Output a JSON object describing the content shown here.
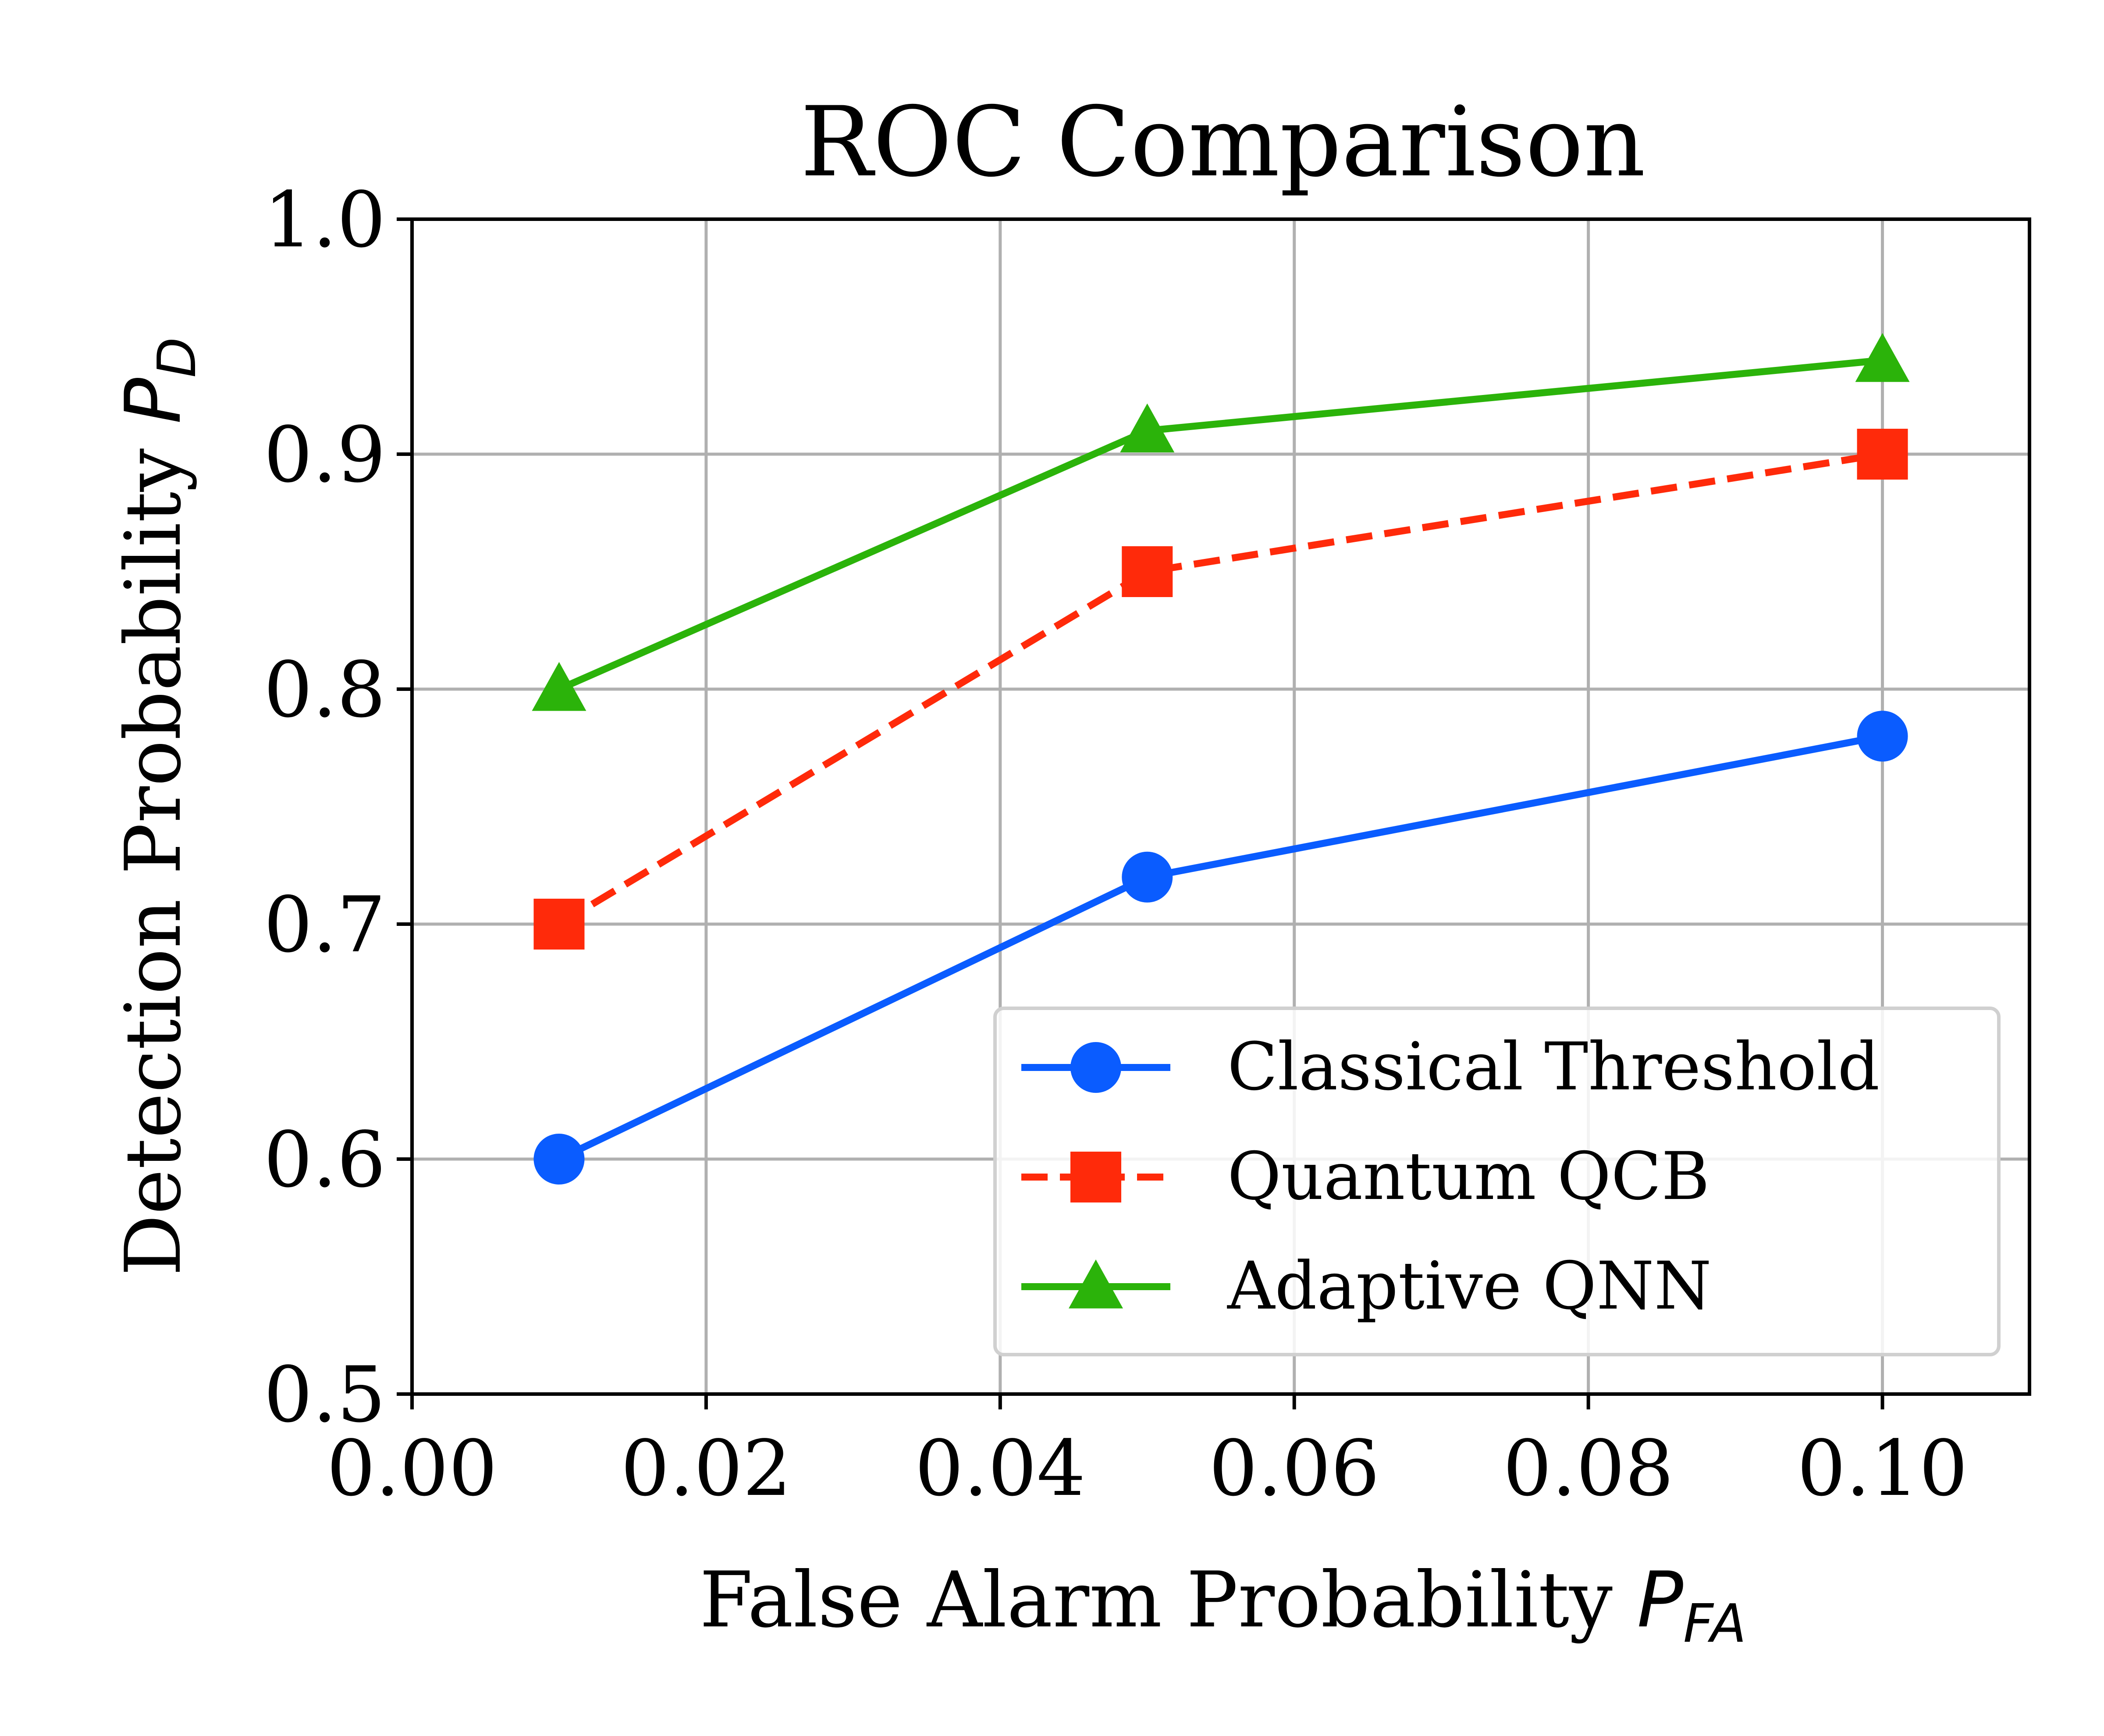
{
  "chart_data": {
    "type": "line",
    "title": "ROC Comparison",
    "xlabel": {
      "main": "False Alarm Probability ",
      "symbol": "P",
      "subscript": "FA"
    },
    "ylabel": {
      "main": "Detection Probability ",
      "symbol": "P",
      "subscript": "D"
    },
    "xlim": [
      0.0,
      0.11
    ],
    "ylim": [
      0.5,
      1.0
    ],
    "xticks": [
      0.0,
      0.02,
      0.04,
      0.06,
      0.08,
      0.1
    ],
    "xtick_labels": [
      "0.00",
      "0.02",
      "0.04",
      "0.06",
      "0.08",
      "0.10"
    ],
    "yticks": [
      0.5,
      0.6,
      0.7,
      0.8,
      0.9,
      1.0
    ],
    "ytick_labels": [
      "0.5",
      "0.6",
      "0.7",
      "0.8",
      "0.9",
      "1.0"
    ],
    "grid": true,
    "legend_position": "lower-right",
    "series": [
      {
        "name": "Classical Threshold",
        "x": [
          0.01,
          0.05,
          0.1
        ],
        "y": [
          0.6,
          0.72,
          0.78
        ],
        "color": "#0a5cff",
        "marker": "circle",
        "dash": "solid"
      },
      {
        "name": "Quantum QCB",
        "x": [
          0.01,
          0.05,
          0.1
        ],
        "y": [
          0.7,
          0.85,
          0.9
        ],
        "color": "#ff2a0a",
        "marker": "square",
        "dash": "dashed"
      },
      {
        "name": "Adaptive QNN",
        "x": [
          0.01,
          0.05,
          0.1
        ],
        "y": [
          0.8,
          0.91,
          0.94
        ],
        "color": "#2bb30a",
        "marker": "triangle",
        "dash": "solid"
      }
    ]
  }
}
